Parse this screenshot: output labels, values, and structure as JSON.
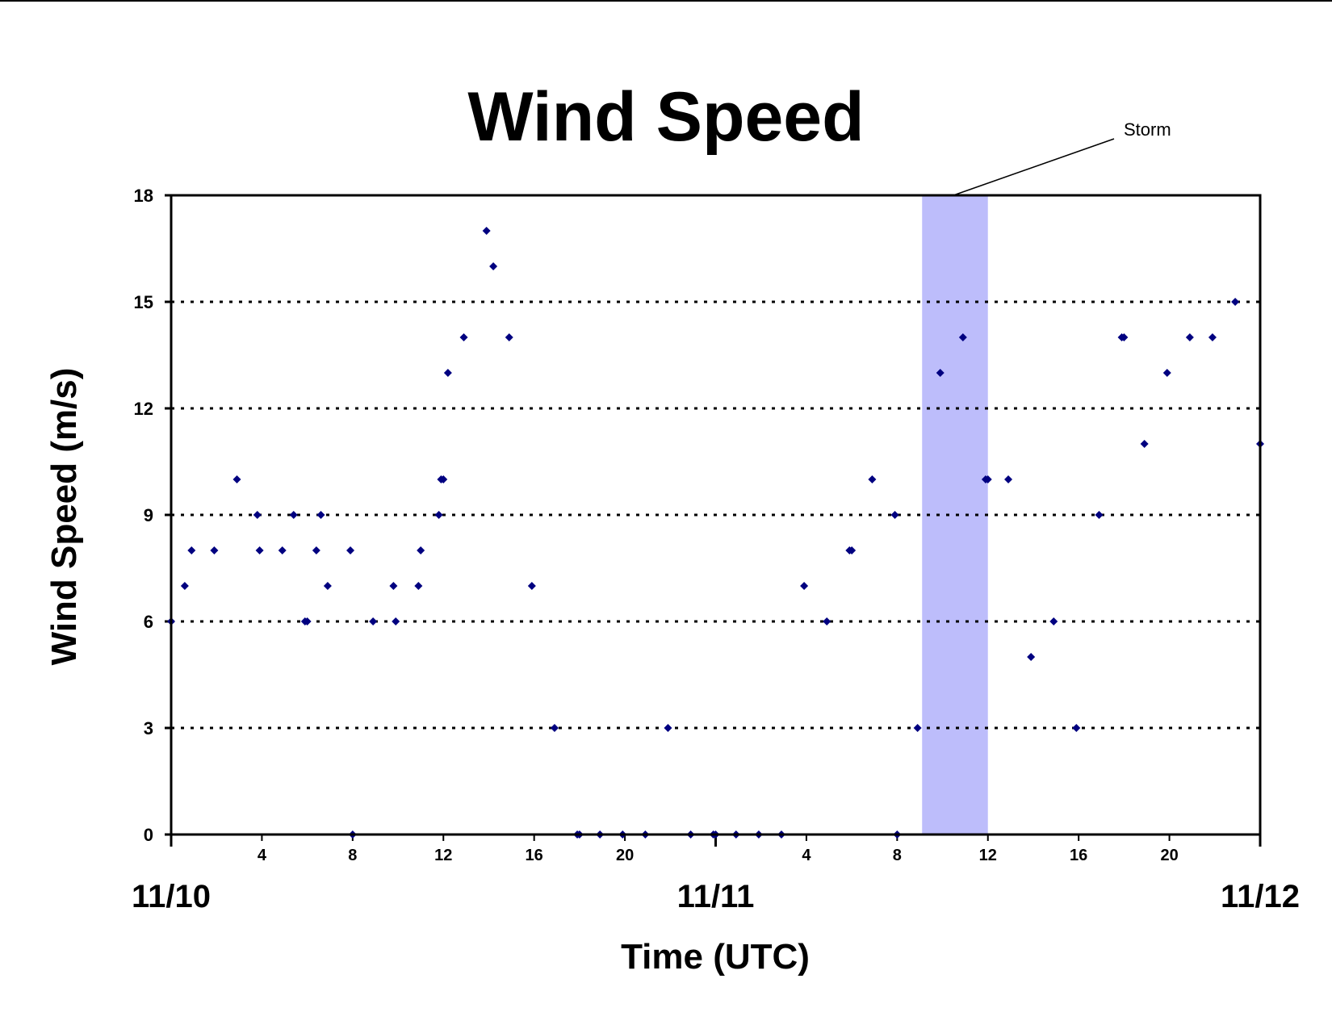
{
  "chart_data": {
    "type": "scatter",
    "title": "Wind Speed",
    "xlabel": "Time (UTC)",
    "ylabel": "Wind Speed (m/s)",
    "ylim": [
      0,
      18
    ],
    "yticks": [
      0,
      3,
      6,
      9,
      12,
      15,
      18
    ],
    "xlim_hours": [
      0,
      48
    ],
    "hour_ticks": [
      {
        "hour": 4,
        "label": "4"
      },
      {
        "hour": 8,
        "label": "8"
      },
      {
        "hour": 12,
        "label": "12"
      },
      {
        "hour": 16,
        "label": "16"
      },
      {
        "hour": 20,
        "label": "20"
      },
      {
        "hour": 28,
        "label": "4"
      },
      {
        "hour": 32,
        "label": "8"
      },
      {
        "hour": 36,
        "label": "12"
      },
      {
        "hour": 40,
        "label": "16"
      },
      {
        "hour": 44,
        "label": "20"
      }
    ],
    "day_labels": [
      {
        "hour": 0,
        "label": "11/10"
      },
      {
        "hour": 24,
        "label": "11/11"
      },
      {
        "hour": 48,
        "label": "11/12"
      }
    ],
    "grid": "horizontal dotted",
    "marker_color": "#000080",
    "highlight": {
      "x_start": 33.1,
      "x_end": 36,
      "color": "#bdbdfb",
      "label": "Storm"
    },
    "points": [
      [
        0,
        6
      ],
      [
        0.6,
        7
      ],
      [
        0.9,
        8
      ],
      [
        1.9,
        8
      ],
      [
        2.9,
        10
      ],
      [
        3.8,
        9
      ],
      [
        3.9,
        8
      ],
      [
        4.9,
        8
      ],
      [
        5.4,
        9
      ],
      [
        5.9,
        6
      ],
      [
        6.0,
        6
      ],
      [
        6.4,
        8
      ],
      [
        6.6,
        9
      ],
      [
        6.9,
        7
      ],
      [
        7.9,
        8
      ],
      [
        8.0,
        0
      ],
      [
        8.9,
        6
      ],
      [
        9.8,
        7
      ],
      [
        9.9,
        6
      ],
      [
        10.9,
        7
      ],
      [
        11.0,
        8
      ],
      [
        11.8,
        9
      ],
      [
        11.9,
        10
      ],
      [
        12.0,
        10
      ],
      [
        12.2,
        13
      ],
      [
        12.9,
        14
      ],
      [
        13.9,
        17
      ],
      [
        14.2,
        16
      ],
      [
        14.9,
        14
      ],
      [
        15.9,
        7
      ],
      [
        16.9,
        3
      ],
      [
        17.9,
        0
      ],
      [
        18.0,
        0
      ],
      [
        18.9,
        0
      ],
      [
        19.9,
        0
      ],
      [
        20.9,
        0
      ],
      [
        21.9,
        3
      ],
      [
        22.9,
        0
      ],
      [
        23.9,
        0
      ],
      [
        24.0,
        0
      ],
      [
        24.9,
        0
      ],
      [
        25.9,
        0
      ],
      [
        26.9,
        0
      ],
      [
        27.9,
        7
      ],
      [
        28.9,
        6
      ],
      [
        29.9,
        8
      ],
      [
        30.0,
        8
      ],
      [
        30.9,
        10
      ],
      [
        31.9,
        9
      ],
      [
        32.0,
        0
      ],
      [
        32.9,
        3
      ],
      [
        33.9,
        13
      ],
      [
        34.9,
        14
      ],
      [
        35.9,
        10
      ],
      [
        36.0,
        10
      ],
      [
        36.9,
        10
      ],
      [
        37.9,
        5
      ],
      [
        38.9,
        6
      ],
      [
        39.9,
        3
      ],
      [
        40.9,
        9
      ],
      [
        41.9,
        14
      ],
      [
        42.0,
        14
      ],
      [
        42.9,
        11
      ],
      [
        43.9,
        13
      ],
      [
        44.9,
        14
      ],
      [
        45.9,
        14
      ],
      [
        46.9,
        15
      ],
      [
        48.0,
        11
      ]
    ]
  }
}
